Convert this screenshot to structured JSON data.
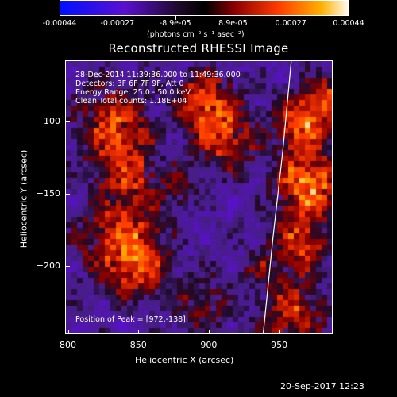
{
  "colorbar": {
    "labels": [
      "-0.00044",
      "-0.00027",
      "-8.9e-05",
      "8.9e-05",
      "0.00027",
      "0.00044"
    ],
    "units": "(photons cm⁻² s⁻¹ asec⁻²)",
    "colors": [
      "#0000ff",
      "#5a00c8",
      "#000000",
      "#a00000",
      "#ff4000",
      "#ffaa00",
      "#ffffff"
    ]
  },
  "chart_data": {
    "type": "heatmap",
    "title": "Reconstructed RHESSI Image",
    "xlabel": "Heliocentric X (arcsec)",
    "ylabel": "Heliocentric Y (arcsec)",
    "xlim": [
      798,
      988
    ],
    "ylim": [
      -247,
      -58
    ],
    "xticks": [
      800,
      850,
      900,
      950
    ],
    "yticks": [
      -100,
      -150,
      -200
    ],
    "ytick_labels": [
      "−100",
      "−150",
      "−200"
    ],
    "annotations": [
      "28-Dec-2014 11:39:36.000 to 11:49:36.000",
      "Detectors: 3F 6F 7F 9F, Att 0",
      "Energy Range: 25.0 - 50.0 keV",
      "Clean    Total counts: 1.18E+04"
    ],
    "peak_label": "Position of Peak = [972,-138]",
    "peak": [
      972,
      -138
    ],
    "limb_curve": [
      [
        958,
        -58
      ],
      [
        952,
        -120
      ],
      [
        945,
        -180
      ],
      [
        938,
        -247
      ]
    ]
  },
  "footer": {
    "timestamp": "20-Sep-2017 12:23"
  }
}
